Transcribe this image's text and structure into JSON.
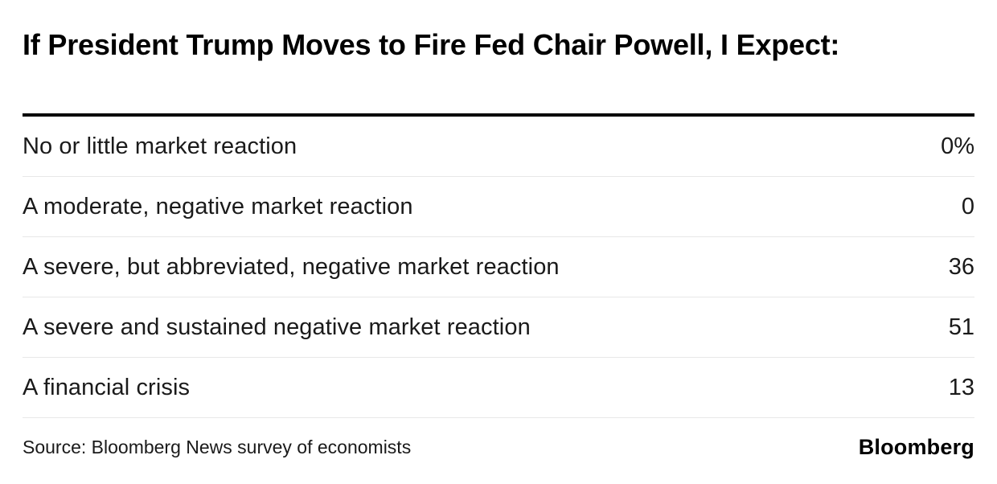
{
  "chart_data": {
    "type": "table",
    "title": "If President Trump Moves to Fire Fed Chair Powell, I Expect:",
    "categories": [
      "No or little market reaction",
      "A moderate, negative market reaction",
      "A severe, but abbreviated, negative market reaction",
      "A severe and sustained negative market reaction",
      "A financial crisis"
    ],
    "values": [
      0,
      0,
      36,
      51,
      13
    ],
    "unit": "%",
    "rows": [
      {
        "label": "No or little market reaction",
        "value": "0%"
      },
      {
        "label": "A moderate, negative market reaction",
        "value": "0"
      },
      {
        "label": "A severe, but abbreviated, negative market reaction",
        "value": "36"
      },
      {
        "label": "A severe and sustained negative market reaction",
        "value": "51"
      },
      {
        "label": "A financial crisis",
        "value": "13"
      }
    ],
    "source": "Source: Bloomberg News survey of economists",
    "brand": "Bloomberg",
    "layout": {
      "legend": "none",
      "grid": "horizontal-separators-only"
    }
  },
  "colors": {
    "background": "#ffffff",
    "title_text": "#000000",
    "row_text": "#1a1a1a",
    "top_rule": "#000000",
    "separator": "#e8e8e8"
  }
}
